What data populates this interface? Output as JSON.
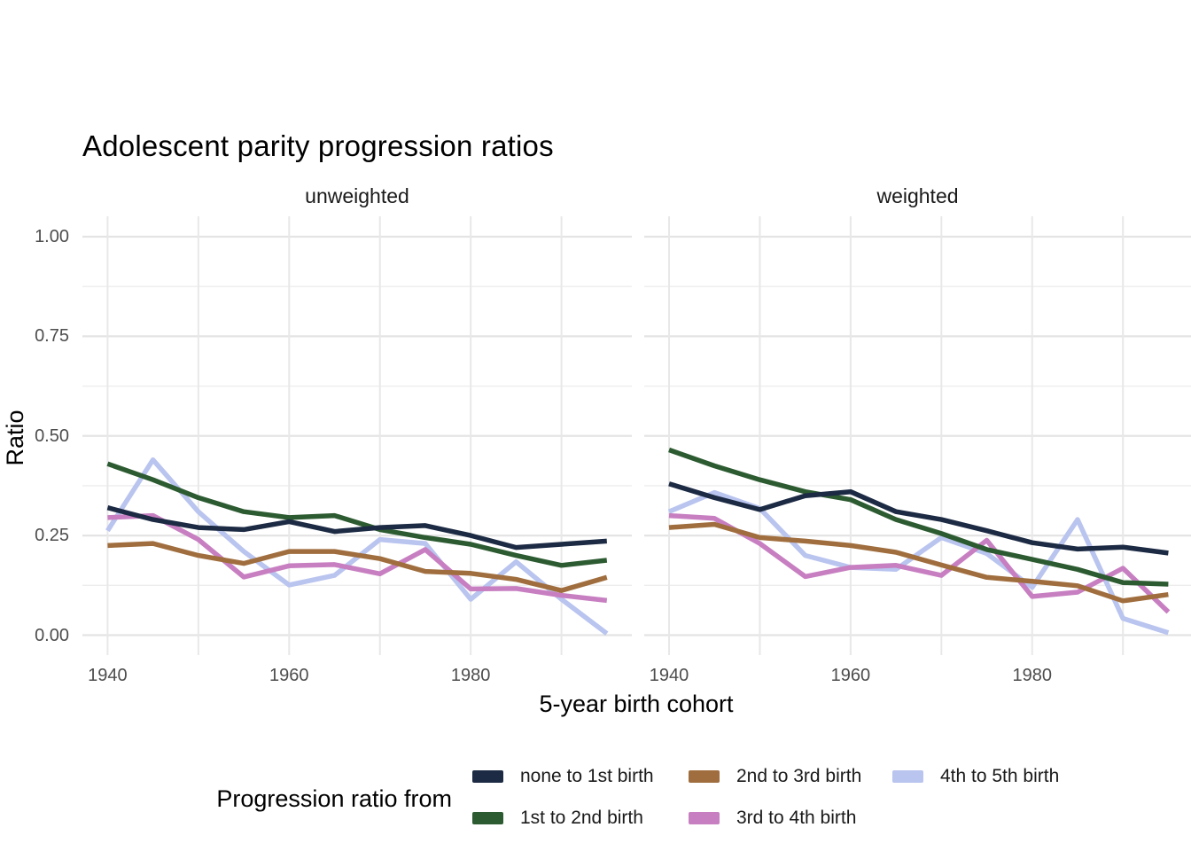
{
  "chart_data": {
    "type": "line",
    "title": "Adolescent parity progression ratios",
    "xlabel": "5-year birth cohort",
    "ylabel": "Ratio",
    "legend_title": "Progression ratio from",
    "legend_position": "bottom",
    "grid": true,
    "x": [
      1940,
      1945,
      1950,
      1955,
      1960,
      1965,
      1970,
      1975,
      1980,
      1985,
      1990,
      1995
    ],
    "x_tick_years": [
      1940,
      1960,
      1980
    ],
    "x_tick_labels": [
      "1940",
      "1960",
      "1980"
    ],
    "gridline_years": [
      1940,
      1950,
      1960,
      1970,
      1980,
      1990
    ],
    "y_tick_values": [
      0,
      0.25,
      0.5,
      0.75,
      1
    ],
    "y_tick_labels": [
      "0.00",
      "0.25",
      "0.50",
      "0.75",
      "1.00"
    ],
    "y_minor_values": [
      0.125,
      0.375,
      0.625,
      0.875
    ],
    "ylim": [
      0,
      1
    ],
    "colors": {
      "grid_major": "#e4e4e4",
      "grid_minor": "#ededed",
      "grid_vertical": "#e8e8e8",
      "tick_text": "#4d4d4d",
      "text": "#1a1a1a"
    },
    "facets": [
      {
        "label": "unweighted",
        "series": [
          {
            "name": "none to 1st birth",
            "color": "#1c2a43",
            "values": [
              0.32,
              0.29,
              0.27,
              0.265,
              0.285,
              0.26,
              0.27,
              0.275,
              0.25,
              0.22,
              0.228,
              0.236
            ]
          },
          {
            "name": "1st to 2nd birth",
            "color": "#2d5b31",
            "values": [
              0.43,
              0.39,
              0.345,
              0.31,
              0.295,
              0.3,
              0.265,
              0.245,
              0.228,
              0.2,
              0.175,
              0.188
            ]
          },
          {
            "name": "2nd to 3rd birth",
            "color": "#a06e3e",
            "values": [
              0.225,
              0.23,
              0.2,
              0.18,
              0.21,
              0.21,
              0.192,
              0.16,
              0.155,
              0.14,
              0.112,
              0.145
            ]
          },
          {
            "name": "3rd to 4th birth",
            "color": "#c77fc1",
            "values": [
              0.295,
              0.3,
              0.24,
              0.146,
              0.174,
              0.177,
              0.154,
              0.215,
              0.116,
              0.117,
              0.1,
              0.087
            ]
          },
          {
            "name": "4th to 5th birth",
            "color": "#b9c4ef",
            "values": [
              0.262,
              0.44,
              0.31,
              0.21,
              0.126,
              0.15,
              0.24,
              0.23,
              0.09,
              0.184,
              0.09,
              0.004
            ]
          }
        ]
      },
      {
        "label": "weighted",
        "series": [
          {
            "name": "none to 1st birth",
            "color": "#1c2a43",
            "values": [
              0.38,
              0.345,
              0.315,
              0.35,
              0.36,
              0.31,
              0.29,
              0.262,
              0.232,
              0.216,
              0.221,
              0.206
            ]
          },
          {
            "name": "1st to 2nd birth",
            "color": "#2d5b31",
            "values": [
              0.465,
              0.425,
              0.39,
              0.36,
              0.34,
              0.29,
              0.255,
              0.215,
              0.19,
              0.165,
              0.132,
              0.128
            ]
          },
          {
            "name": "2nd to 3rd birth",
            "color": "#a06e3e",
            "values": [
              0.27,
              0.278,
              0.245,
              0.236,
              0.225,
              0.208,
              0.176,
              0.145,
              0.135,
              0.124,
              0.086,
              0.102
            ]
          },
          {
            "name": "3rd to 4th birth",
            "color": "#c77fc1",
            "values": [
              0.3,
              0.293,
              0.23,
              0.147,
              0.17,
              0.175,
              0.15,
              0.238,
              0.097,
              0.108,
              0.168,
              0.058
            ]
          },
          {
            "name": "4th to 5th birth",
            "color": "#b9c4ef",
            "values": [
              0.31,
              0.358,
              0.318,
              0.2,
              0.17,
              0.165,
              0.245,
              0.205,
              0.12,
              0.29,
              0.042,
              0.006
            ]
          }
        ]
      }
    ]
  }
}
